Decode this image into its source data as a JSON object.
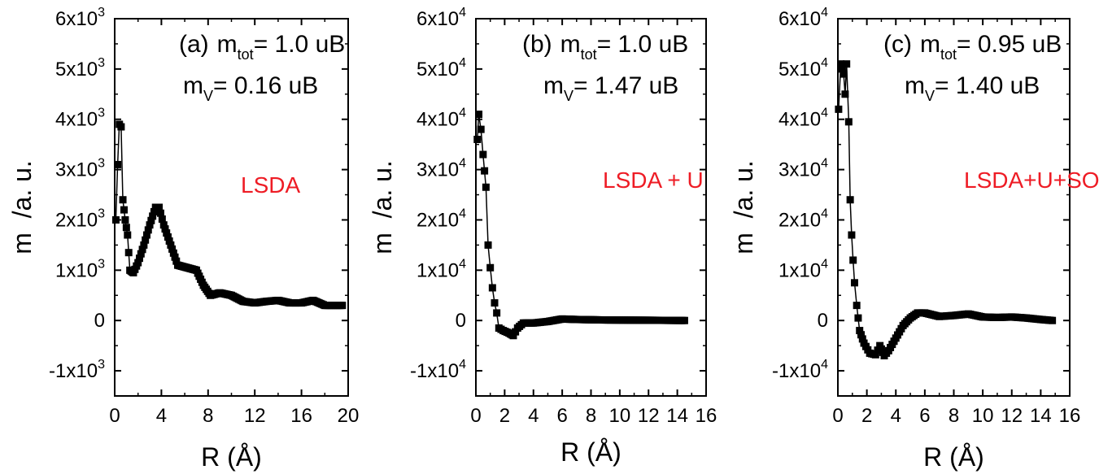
{
  "chart_data": [
    {
      "type": "scatter",
      "panel_label": "(a)",
      "xlabel": "R (Å)",
      "ylabel": "m  /a. u.",
      "xlim": [
        0,
        20
      ],
      "ylim": [
        -1500,
        6000
      ],
      "xticks": [
        0,
        4,
        8,
        12,
        16,
        20
      ],
      "xtick_labels": [
        "0",
        "4",
        "8",
        "12",
        "16",
        "20"
      ],
      "yticks": [
        -1000,
        0,
        1000,
        2000,
        3000,
        4000,
        5000,
        6000
      ],
      "ytick_labels": [
        {
          "base": "-1x10",
          "exp": "3"
        },
        {
          "base": "0",
          "exp": ""
        },
        {
          "base": "1x10",
          "exp": "3"
        },
        {
          "base": "2x10",
          "exp": "3"
        },
        {
          "base": "3x10",
          "exp": "3"
        },
        {
          "base": "4x10",
          "exp": "3"
        },
        {
          "base": "5x10",
          "exp": "3"
        },
        {
          "base": "6x10",
          "exp": "3"
        }
      ],
      "annotations": {
        "mtot": {
          "m": "m",
          "sub": "tot",
          "value": "= 1.0 uB"
        },
        "mv": {
          "m": "m",
          "sub": "V",
          "value": "= 0.16 uB"
        },
        "method": "LSDA"
      },
      "method_color": "#ee1c25",
      "grid": false,
      "keypoints": [
        [
          0.1,
          2000
        ],
        [
          0.25,
          3100
        ],
        [
          0.4,
          3900
        ],
        [
          0.55,
          3850
        ],
        [
          0.7,
          2400
        ],
        [
          0.9,
          2000
        ],
        [
          1.1,
          1700
        ],
        [
          1.3,
          1000
        ],
        [
          1.6,
          950
        ],
        [
          2.0,
          1150
        ],
        [
          2.5,
          1500
        ],
        [
          3.0,
          1900
        ],
        [
          3.5,
          2250
        ],
        [
          3.8,
          2250
        ],
        [
          4.2,
          1900
        ],
        [
          4.8,
          1500
        ],
        [
          5.4,
          1100
        ],
        [
          6.2,
          1050
        ],
        [
          7.0,
          1000
        ],
        [
          7.6,
          700
        ],
        [
          8.2,
          500
        ],
        [
          9.0,
          550
        ],
        [
          10.0,
          500
        ],
        [
          11.0,
          380
        ],
        [
          12.0,
          350
        ],
        [
          13.0,
          380
        ],
        [
          14.0,
          400
        ],
        [
          15.0,
          350
        ],
        [
          16.0,
          350
        ],
        [
          17.0,
          400
        ],
        [
          18.0,
          300
        ],
        [
          19.5,
          300
        ]
      ],
      "step": 0.12,
      "marker": "square",
      "color": "#000000"
    },
    {
      "type": "scatter",
      "panel_label": "(b)",
      "xlabel": "R (Å)",
      "ylabel": "m  /a. u.",
      "xlim": [
        0,
        16
      ],
      "ylim": [
        -15000,
        60000
      ],
      "xticks": [
        0,
        2,
        4,
        6,
        8,
        10,
        12,
        14,
        16
      ],
      "xtick_labels": [
        "0",
        "2",
        "4",
        "6",
        "8",
        "10",
        "12",
        "14",
        "16"
      ],
      "yticks": [
        -10000,
        0,
        10000,
        20000,
        30000,
        40000,
        50000,
        60000
      ],
      "ytick_labels": [
        {
          "base": "-1x10",
          "exp": "4"
        },
        {
          "base": "0",
          "exp": ""
        },
        {
          "base": "1x10",
          "exp": "4"
        },
        {
          "base": "2x10",
          "exp": "4"
        },
        {
          "base": "3x10",
          "exp": "4"
        },
        {
          "base": "4x10",
          "exp": "4"
        },
        {
          "base": "5x10",
          "exp": "4"
        },
        {
          "base": "6x10",
          "exp": "4"
        }
      ],
      "annotations": {
        "mtot": {
          "m": "m",
          "sub": "tot",
          "value": "= 1.0 uB"
        },
        "mv": {
          "m": "m",
          "sub": "V",
          "value": "= 1.47 uB"
        },
        "method": "LSDA + U"
      },
      "method_color": "#ee1c25",
      "grid": false,
      "keypoints": [
        [
          0.1,
          36000
        ],
        [
          0.2,
          41000
        ],
        [
          0.35,
          38000
        ],
        [
          0.5,
          33000
        ],
        [
          0.7,
          26500
        ],
        [
          0.85,
          15000
        ],
        [
          1.0,
          10500
        ],
        [
          1.15,
          6500
        ],
        [
          1.3,
          3500
        ],
        [
          1.45,
          1500
        ],
        [
          1.6,
          -1500
        ],
        [
          1.9,
          -2000
        ],
        [
          2.3,
          -2500
        ],
        [
          2.6,
          -3000
        ],
        [
          2.9,
          -1500
        ],
        [
          3.3,
          -500
        ],
        [
          4.0,
          -500
        ],
        [
          5.0,
          -200
        ],
        [
          6.0,
          300
        ],
        [
          7.0,
          200
        ],
        [
          9.0,
          100
        ],
        [
          12.0,
          50
        ],
        [
          14.5,
          0
        ]
      ],
      "step": 0.12,
      "marker": "square",
      "color": "#000000"
    },
    {
      "type": "scatter",
      "panel_label": "(c)",
      "xlabel": "R (Å)",
      "ylabel": "m  /a. u.",
      "xlim": [
        0,
        16
      ],
      "ylim": [
        -15000,
        60000
      ],
      "xticks": [
        0,
        2,
        4,
        6,
        8,
        10,
        12,
        14,
        16
      ],
      "xtick_labels": [
        "0",
        "2",
        "4",
        "6",
        "8",
        "10",
        "12",
        "14",
        "16"
      ],
      "yticks": [
        -10000,
        0,
        10000,
        20000,
        30000,
        40000,
        50000,
        60000
      ],
      "ytick_labels": [
        {
          "base": "-1x10",
          "exp": "4"
        },
        {
          "base": "0",
          "exp": ""
        },
        {
          "base": "1x10",
          "exp": "4"
        },
        {
          "base": "2x10",
          "exp": "4"
        },
        {
          "base": "3x10",
          "exp": "4"
        },
        {
          "base": "4x10",
          "exp": "4"
        },
        {
          "base": "5x10",
          "exp": "4"
        },
        {
          "base": "6x10",
          "exp": "4"
        }
      ],
      "annotations": {
        "mtot": {
          "m": "m",
          "sub": "tot",
          "value": "= 0.95 uB"
        },
        "mv": {
          "m": "m",
          "sub": "V",
          "value": "= 1.40 uB"
        },
        "method": "LSDA+U+SOC"
      },
      "method_color": "#ee1c25",
      "grid": false,
      "keypoints": [
        [
          0.05,
          42000
        ],
        [
          0.2,
          51000
        ],
        [
          0.4,
          49000
        ],
        [
          0.5,
          45000
        ],
        [
          0.6,
          51000
        ],
        [
          0.75,
          39500
        ],
        [
          0.85,
          24000
        ],
        [
          0.95,
          17000
        ],
        [
          1.05,
          12000
        ],
        [
          1.15,
          7500
        ],
        [
          1.3,
          3000
        ],
        [
          1.5,
          -2000
        ],
        [
          1.8,
          -4500
        ],
        [
          2.2,
          -6500
        ],
        [
          2.6,
          -6800
        ],
        [
          2.9,
          -5000
        ],
        [
          3.2,
          -7000
        ],
        [
          3.5,
          -6000
        ],
        [
          4.0,
          -3500
        ],
        [
          4.5,
          -1000
        ],
        [
          5.0,
          500
        ],
        [
          5.5,
          1500
        ],
        [
          6.0,
          1500
        ],
        [
          7.0,
          800
        ],
        [
          8.0,
          1000
        ],
        [
          9.0,
          1300
        ],
        [
          10.0,
          700
        ],
        [
          11.0,
          600
        ],
        [
          12.0,
          700
        ],
        [
          13.0,
          500
        ],
        [
          14.0,
          200
        ],
        [
          14.8,
          0
        ]
      ],
      "step": 0.12,
      "marker": "square",
      "color": "#000000"
    }
  ]
}
